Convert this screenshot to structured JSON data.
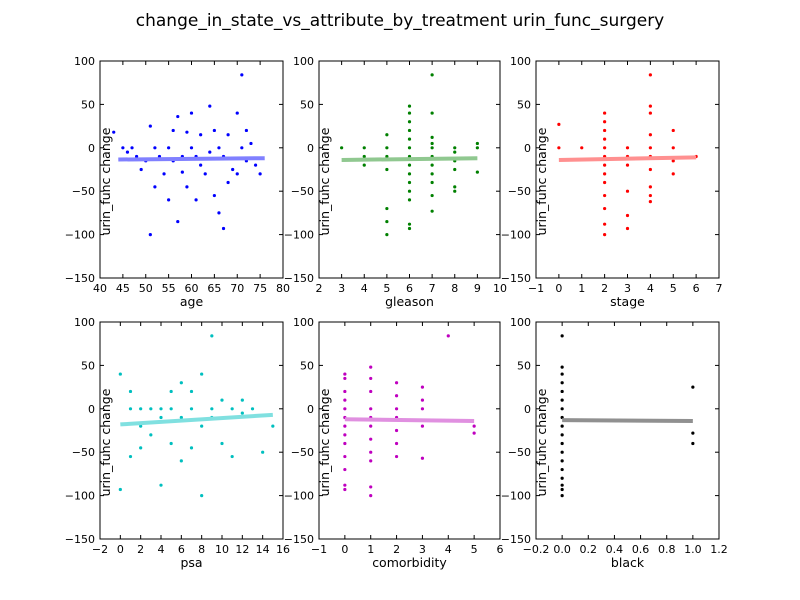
{
  "title": "change_in_state_vs_attribute_by_treatment urin_func_surgery",
  "chart_data": [
    {
      "type": "scatter",
      "xlabel": "age",
      "ylabel": "urin_func change",
      "xlim": [
        40,
        80
      ],
      "ylim": [
        -150,
        100
      ],
      "xticks": [
        40,
        45,
        50,
        55,
        60,
        65,
        70,
        75,
        80
      ],
      "yticks": [
        -150,
        -100,
        -50,
        0,
        50,
        100
      ],
      "color": "#0000ff",
      "trend_color": "#8080ff",
      "trend": [
        [
          44,
          -13.5
        ],
        [
          76,
          -12
        ]
      ],
      "points": [
        [
          43,
          18
        ],
        [
          45,
          0
        ],
        [
          46,
          -5
        ],
        [
          47,
          0
        ],
        [
          48,
          -10
        ],
        [
          49,
          -25
        ],
        [
          50,
          -15
        ],
        [
          51,
          25
        ],
        [
          51,
          -100
        ],
        [
          52,
          -45
        ],
        [
          52,
          0
        ],
        [
          53,
          -10
        ],
        [
          54,
          -30
        ],
        [
          55,
          -60
        ],
        [
          55,
          0
        ],
        [
          56,
          20
        ],
        [
          56,
          -15
        ],
        [
          57,
          36
        ],
        [
          57,
          -85
        ],
        [
          58,
          -28
        ],
        [
          58,
          -10
        ],
        [
          59,
          18
        ],
        [
          59,
          -45
        ],
        [
          60,
          40
        ],
        [
          60,
          0
        ],
        [
          61,
          -10
        ],
        [
          61,
          -60
        ],
        [
          62,
          15
        ],
        [
          62,
          -20
        ],
        [
          63,
          -30
        ],
        [
          64,
          48
        ],
        [
          64,
          -5
        ],
        [
          65,
          20
        ],
        [
          65,
          -55
        ],
        [
          66,
          -75
        ],
        [
          66,
          0
        ],
        [
          67,
          -10
        ],
        [
          67,
          -93
        ],
        [
          68,
          15
        ],
        [
          68,
          -40
        ],
        [
          69,
          -25
        ],
        [
          70,
          40
        ],
        [
          70,
          -30
        ],
        [
          71,
          84
        ],
        [
          71,
          0
        ],
        [
          72,
          20
        ],
        [
          72,
          -15
        ],
        [
          73,
          5
        ],
        [
          74,
          -20
        ],
        [
          75,
          -30
        ]
      ]
    },
    {
      "type": "scatter",
      "xlabel": "gleason",
      "ylabel": "urin_func change",
      "xlim": [
        2,
        10
      ],
      "ylim": [
        -150,
        100
      ],
      "xticks": [
        2,
        3,
        4,
        5,
        6,
        7,
        8,
        9,
        10
      ],
      "yticks": [
        -150,
        -100,
        -50,
        0,
        50,
        100
      ],
      "color": "#008000",
      "trend_color": "#90c890",
      "trend": [
        [
          3,
          -14
        ],
        [
          9,
          -12
        ]
      ],
      "points": [
        [
          3,
          0
        ],
        [
          4,
          0
        ],
        [
          4,
          -10
        ],
        [
          4,
          -20
        ],
        [
          5,
          15
        ],
        [
          5,
          0
        ],
        [
          5,
          -10
        ],
        [
          5,
          -25
        ],
        [
          5,
          -70
        ],
        [
          5,
          -85
        ],
        [
          5,
          -100
        ],
        [
          6,
          48
        ],
        [
          6,
          40
        ],
        [
          6,
          30
        ],
        [
          6,
          20
        ],
        [
          6,
          10
        ],
        [
          6,
          0
        ],
        [
          6,
          -10
        ],
        [
          6,
          -20
        ],
        [
          6,
          -30
        ],
        [
          6,
          -40
        ],
        [
          6,
          -50
        ],
        [
          6,
          -60
        ],
        [
          6,
          -88
        ],
        [
          6,
          -93
        ],
        [
          7,
          84
        ],
        [
          7,
          40
        ],
        [
          7,
          12
        ],
        [
          7,
          5
        ],
        [
          7,
          0
        ],
        [
          7,
          -10
        ],
        [
          7,
          -20
        ],
        [
          7,
          -30
        ],
        [
          7,
          -40
        ],
        [
          7,
          -55
        ],
        [
          7,
          -73
        ],
        [
          8,
          0
        ],
        [
          8,
          -5
        ],
        [
          8,
          -15
        ],
        [
          8,
          -25
        ],
        [
          8,
          -45
        ],
        [
          8,
          -50
        ],
        [
          9,
          5
        ],
        [
          9,
          0
        ],
        [
          9,
          -28
        ]
      ]
    },
    {
      "type": "scatter",
      "xlabel": "stage",
      "ylabel": "urin_func change",
      "xlim": [
        -1,
        7
      ],
      "ylim": [
        -150,
        100
      ],
      "xticks": [
        -1,
        0,
        1,
        2,
        3,
        4,
        5,
        6,
        7
      ],
      "yticks": [
        -150,
        -100,
        -50,
        0,
        50,
        100
      ],
      "color": "#ff0000",
      "trend_color": "#ff9090",
      "trend": [
        [
          0,
          -14
        ],
        [
          6,
          -11
        ]
      ],
      "points": [
        [
          0,
          27
        ],
        [
          0,
          0
        ],
        [
          1,
          0
        ],
        [
          2,
          40
        ],
        [
          2,
          30
        ],
        [
          2,
          20
        ],
        [
          2,
          10
        ],
        [
          2,
          0
        ],
        [
          2,
          -10
        ],
        [
          2,
          -20
        ],
        [
          2,
          -30
        ],
        [
          2,
          -40
        ],
        [
          2,
          -55
        ],
        [
          2,
          -70
        ],
        [
          2,
          -88
        ],
        [
          2,
          -100
        ],
        [
          3,
          0
        ],
        [
          3,
          -10
        ],
        [
          3,
          -20
        ],
        [
          3,
          -50
        ],
        [
          3,
          -78
        ],
        [
          3,
          -93
        ],
        [
          4,
          84
        ],
        [
          4,
          48
        ],
        [
          4,
          40
        ],
        [
          4,
          15
        ],
        [
          4,
          0
        ],
        [
          4,
          -10
        ],
        [
          4,
          -25
        ],
        [
          4,
          -45
        ],
        [
          4,
          -55
        ],
        [
          4,
          -62
        ],
        [
          5,
          20
        ],
        [
          5,
          0
        ],
        [
          5,
          -15
        ],
        [
          5,
          -30
        ],
        [
          6,
          -10
        ]
      ]
    },
    {
      "type": "scatter",
      "xlabel": "psa",
      "ylabel": "urin_func change",
      "xlim": [
        -2,
        16
      ],
      "ylim": [
        -150,
        100
      ],
      "xticks": [
        -2,
        0,
        2,
        4,
        6,
        8,
        10,
        12,
        14,
        16
      ],
      "yticks": [
        -150,
        -100,
        -50,
        0,
        50,
        100
      ],
      "color": "#00bfbf",
      "trend_color": "#80e0e0",
      "trend": [
        [
          0,
          -18
        ],
        [
          15,
          -7
        ]
      ],
      "points": [
        [
          0,
          40
        ],
        [
          0,
          -93
        ],
        [
          1,
          20
        ],
        [
          1,
          -55
        ],
        [
          1,
          0
        ],
        [
          2,
          0
        ],
        [
          2,
          -20
        ],
        [
          2,
          -45
        ],
        [
          3,
          0
        ],
        [
          3,
          -30
        ],
        [
          4,
          0
        ],
        [
          4,
          -10
        ],
        [
          4,
          -88
        ],
        [
          5,
          20
        ],
        [
          5,
          -40
        ],
        [
          5,
          0
        ],
        [
          6,
          30
        ],
        [
          6,
          -60
        ],
        [
          6,
          -10
        ],
        [
          7,
          20
        ],
        [
          7,
          -45
        ],
        [
          7,
          0
        ],
        [
          8,
          40
        ],
        [
          8,
          -100
        ],
        [
          8,
          -20
        ],
        [
          9,
          84
        ],
        [
          9,
          0
        ],
        [
          9,
          -10
        ],
        [
          10,
          10
        ],
        [
          10,
          -40
        ],
        [
          11,
          0
        ],
        [
          11,
          -55
        ],
        [
          12,
          10
        ],
        [
          12,
          -5
        ],
        [
          13,
          0
        ],
        [
          14,
          -50
        ],
        [
          15,
          -20
        ]
      ]
    },
    {
      "type": "scatter",
      "xlabel": "comorbidity",
      "ylabel": "urin_func change",
      "xlim": [
        -1,
        6
      ],
      "ylim": [
        -150,
        100
      ],
      "xticks": [
        -1,
        0,
        1,
        2,
        3,
        4,
        5,
        6
      ],
      "yticks": [
        -150,
        -100,
        -50,
        0,
        50,
        100
      ],
      "color": "#bf00bf",
      "trend_color": "#e090e0",
      "trend": [
        [
          0,
          -12
        ],
        [
          5,
          -14
        ]
      ],
      "points": [
        [
          0,
          40
        ],
        [
          0,
          35
        ],
        [
          0,
          20
        ],
        [
          0,
          10
        ],
        [
          0,
          0
        ],
        [
          0,
          -10
        ],
        [
          0,
          -20
        ],
        [
          0,
          -30
        ],
        [
          0,
          -40
        ],
        [
          0,
          -55
        ],
        [
          0,
          -70
        ],
        [
          0,
          -88
        ],
        [
          0,
          -93
        ],
        [
          1,
          48
        ],
        [
          1,
          35
        ],
        [
          1,
          20
        ],
        [
          1,
          0
        ],
        [
          1,
          -10
        ],
        [
          1,
          -20
        ],
        [
          1,
          -35
        ],
        [
          1,
          -50
        ],
        [
          1,
          -60
        ],
        [
          1,
          -90
        ],
        [
          1,
          -100
        ],
        [
          2,
          30
        ],
        [
          2,
          15
        ],
        [
          2,
          0
        ],
        [
          2,
          -10
        ],
        [
          2,
          -25
        ],
        [
          2,
          -40
        ],
        [
          2,
          -55
        ],
        [
          3,
          25
        ],
        [
          3,
          10
        ],
        [
          3,
          0
        ],
        [
          3,
          -20
        ],
        [
          3,
          -57
        ],
        [
          4,
          84
        ],
        [
          5,
          -20
        ],
        [
          5,
          -28
        ]
      ]
    },
    {
      "type": "scatter",
      "xlabel": "black",
      "ylabel": "urin_func change",
      "xlim": [
        -0.2,
        1.2
      ],
      "ylim": [
        -150,
        100
      ],
      "xticks": [
        "-0.2",
        "0.0",
        "0.2",
        "0.4",
        "0.6",
        "0.8",
        "1.0",
        "1.2"
      ],
      "yticks": [
        -150,
        -100,
        -50,
        0,
        50,
        100
      ],
      "color": "#000000",
      "trend_color": "#909090",
      "trend": [
        [
          0,
          -13
        ],
        [
          1,
          -14
        ]
      ],
      "points": [
        [
          0,
          84
        ],
        [
          0,
          48
        ],
        [
          0,
          40
        ],
        [
          0,
          30
        ],
        [
          0,
          20
        ],
        [
          0,
          10
        ],
        [
          0,
          0
        ],
        [
          0,
          -10
        ],
        [
          0,
          -20
        ],
        [
          0,
          -30
        ],
        [
          0,
          -40
        ],
        [
          0,
          -50
        ],
        [
          0,
          -60
        ],
        [
          0,
          -70
        ],
        [
          0,
          -80
        ],
        [
          0,
          -88
        ],
        [
          0,
          -93
        ],
        [
          0,
          -100
        ],
        [
          1,
          25
        ],
        [
          1,
          -28
        ],
        [
          1,
          -40
        ]
      ]
    }
  ]
}
